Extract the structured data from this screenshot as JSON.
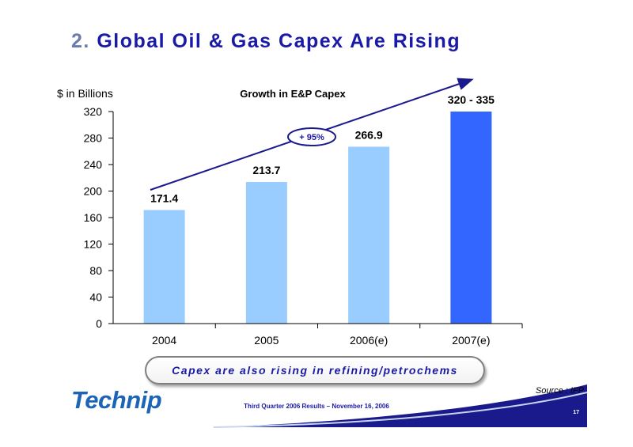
{
  "slide": {
    "title_number": "2.",
    "title_text": "Global Oil & Gas Capex Are Rising",
    "callout": "Capex are also rising in refining/petrochems",
    "logo": "Technip",
    "footer": "Third Quarter 2006 Results – November 16, 2006",
    "source": "Source : IFP",
    "page_number": "17"
  },
  "chart_data": {
    "type": "bar",
    "title": "Growth in E&P Capex",
    "ylabel": "$ in Billions",
    "xlabel": "",
    "categories": [
      "2004",
      "2005",
      "2006(e)",
      "2007(e)"
    ],
    "values": [
      171.4,
      213.7,
      266.9,
      320
    ],
    "data_labels": [
      "171.4",
      "213.7",
      "266.9",
      "320 - 335"
    ],
    "yticks": [
      "0",
      "40",
      "80",
      "120",
      "160",
      "200",
      "240",
      "280",
      "320"
    ],
    "ylim": [
      0,
      320
    ],
    "bar_colors": [
      "#99ccff",
      "#99ccff",
      "#99ccff",
      "#3366ff"
    ],
    "annotation": "+ 95%",
    "grid": false,
    "legend": "none"
  },
  "colors": {
    "title_blue": "#1a1aa6",
    "title_number": "#6a7bb0",
    "bar_light": "#99ccff",
    "bar_dark": "#3366ff",
    "arrow": "#1a1a8c",
    "logo": "#1c64b8",
    "footer_bar": "#1a1a8c"
  }
}
